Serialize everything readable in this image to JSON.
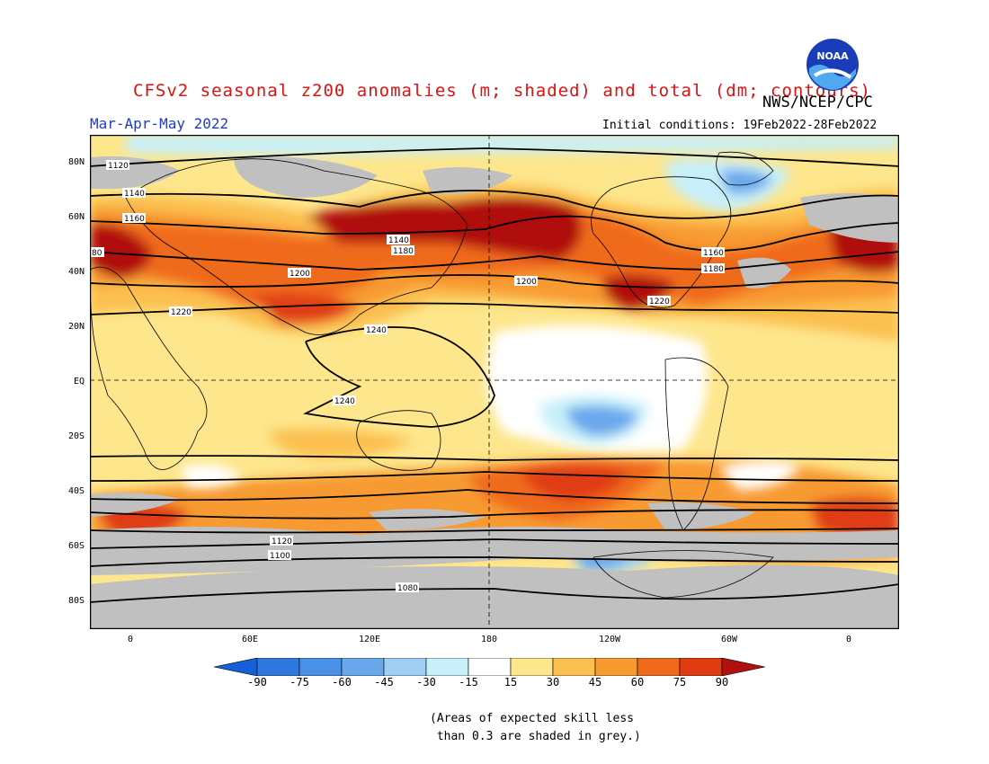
{
  "header": {
    "title": "CFSv2 seasonal z200 anomalies (m; shaded) and total (dm; contours)",
    "agency": "NWS/NCEP/CPC",
    "season": "Mar-Apr-May 2022",
    "initial_conditions": "Initial conditions: 19Feb2022-28Feb2022",
    "logo_text": "NOAA"
  },
  "map": {
    "lat_labels": [
      "80N",
      "60N",
      "40N",
      "20N",
      "EQ",
      "20S",
      "40S",
      "60S",
      "80S"
    ],
    "lon_labels": [
      "0",
      "60E",
      "120E",
      "180",
      "120W",
      "60W",
      "0"
    ],
    "contour_labels": [
      "1120",
      "1140",
      "1160",
      "1180",
      "1200",
      "1220",
      "1240",
      "1140",
      "1160",
      "1180",
      "1200",
      "1220",
      "1240",
      "1120",
      "1100",
      "1080",
      "80"
    ],
    "grey_meaning": "grey"
  },
  "colorbar": {
    "ticks": [
      "-90",
      "-75",
      "-60",
      "-45",
      "-30",
      "-15",
      "15",
      "30",
      "45",
      "60",
      "75",
      "90"
    ],
    "colors": [
      "#1560d8",
      "#2f78e0",
      "#4a90e6",
      "#6aa8ec",
      "#9fd0f4",
      "#c8f0fa",
      "#ffffff",
      "#fde68c",
      "#fbc050",
      "#f89a30",
      "#f06a1e",
      "#e03c14",
      "#b01010"
    ]
  },
  "note": {
    "line1": "(Areas of expected skill less",
    "line2": " than 0.3 are shaded in grey.)"
  }
}
